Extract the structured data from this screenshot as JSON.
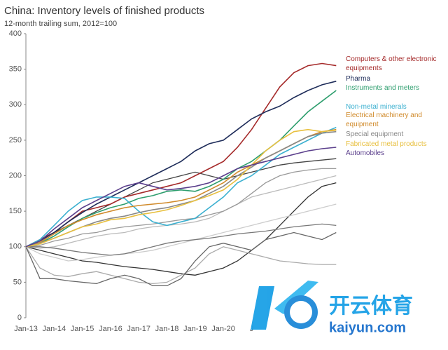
{
  "chart_data": {
    "type": "line",
    "title": "China: Inventory levels of finished products",
    "subtitle": "12-month trailing sum, 2012=100",
    "categories": [
      "Jan-13",
      null,
      "Jan-14",
      null,
      "Jan-15",
      null,
      "Jan-16",
      null,
      "Jan-17",
      null,
      "Jan-18",
      null,
      "Jan-19",
      null,
      "Jan-20",
      null,
      "J",
      null,
      null,
      null,
      null,
      null,
      null
    ],
    "ylim": [
      0,
      400
    ],
    "yticks": [
      0,
      50,
      100,
      150,
      200,
      250,
      300,
      350,
      400
    ],
    "series": [
      {
        "color": "#333333",
        "values": [
          100,
          95,
          90,
          85,
          80,
          78,
          75,
          72,
          70,
          68,
          65,
          62,
          60,
          65,
          70,
          80,
          95,
          110,
          130,
          150,
          170,
          185,
          190
        ]
      },
      {
        "color": "#aaaaaa",
        "values": [
          100,
          70,
          60,
          58,
          62,
          65,
          60,
          55,
          50,
          48,
          50,
          60,
          70,
          90,
          100,
          95,
          90,
          85,
          80,
          78,
          76,
          75,
          75
        ]
      },
      {
        "color": "#666666",
        "values": [
          100,
          55,
          55,
          52,
          50,
          48,
          55,
          60,
          55,
          45,
          45,
          55,
          80,
          100,
          105,
          100,
          95,
          110,
          115,
          120,
          115,
          110,
          120
        ]
      },
      {
        "color": "#bbbbbb",
        "values": [
          100,
          98,
          100,
          105,
          110,
          115,
          118,
          120,
          125,
          128,
          130,
          132,
          135,
          140,
          150,
          160,
          170,
          175,
          180,
          185,
          190,
          195,
          200
        ]
      },
      {
        "color": "#999999",
        "values": [
          100,
          102,
          108,
          112,
          118,
          120,
          125,
          128,
          130,
          132,
          135,
          138,
          140,
          145,
          150,
          160,
          175,
          190,
          200,
          205,
          208,
          210,
          210
        ]
      },
      {
        "color": "#cccccc",
        "values": [
          100,
          90,
          85,
          80,
          82,
          85,
          88,
          90,
          92,
          95,
          100,
          105,
          110,
          115,
          120,
          125,
          130,
          135,
          140,
          145,
          150,
          155,
          160
        ]
      },
      {
        "color": "#777777",
        "values": [
          100,
          100,
          98,
          95,
          92,
          90,
          88,
          90,
          95,
          100,
          105,
          108,
          110,
          112,
          115,
          118,
          120,
          122,
          125,
          128,
          130,
          132,
          130
        ]
      },
      {
        "color": "#444444",
        "values": [
          100,
          110,
          120,
          130,
          140,
          150,
          160,
          170,
          180,
          190,
          195,
          200,
          205,
          200,
          195,
          200,
          205,
          210,
          215,
          218,
          220,
          222,
          224
        ]
      },
      {
        "name": "Computers & other electronic equipments",
        "color": "#a52a2a",
        "values": [
          100,
          110,
          120,
          135,
          150,
          155,
          160,
          170,
          175,
          180,
          185,
          190,
          200,
          210,
          220,
          240,
          265,
          295,
          325,
          345,
          355,
          358,
          355
        ]
      },
      {
        "name": "Pharma",
        "color": "#1f2d5a",
        "values": [
          100,
          108,
          120,
          135,
          148,
          160,
          170,
          180,
          190,
          200,
          210,
          220,
          235,
          245,
          250,
          265,
          280,
          290,
          298,
          310,
          320,
          328,
          333
        ]
      },
      {
        "name": "Instruments and meters",
        "color": "#2e9e6e",
        "values": [
          100,
          105,
          115,
          128,
          140,
          148,
          155,
          160,
          168,
          172,
          178,
          180,
          178,
          185,
          195,
          210,
          220,
          235,
          250,
          270,
          290,
          305,
          320
        ]
      },
      {
        "name": "Non-metal minerals",
        "color": "#3bb0d0",
        "values": [
          100,
          110,
          130,
          150,
          165,
          170,
          170,
          168,
          150,
          135,
          130,
          135,
          140,
          155,
          170,
          190,
          200,
          215,
          230,
          240,
          250,
          260,
          268
        ]
      },
      {
        "name": "Electrical machinery and equipment",
        "color": "#d08a2a",
        "values": [
          100,
          106,
          118,
          130,
          138,
          145,
          150,
          155,
          158,
          160,
          162,
          165,
          170,
          180,
          190,
          205,
          215,
          225,
          235,
          245,
          255,
          262,
          265
        ]
      },
      {
        "name": "Special equipment",
        "color": "#888888",
        "values": [
          100,
          105,
          112,
          120,
          128,
          135,
          140,
          143,
          148,
          152,
          155,
          160,
          165,
          175,
          185,
          200,
          212,
          225,
          235,
          245,
          255,
          260,
          262
        ]
      },
      {
        "name": "Fabricated metal products",
        "color": "#e8c040",
        "values": [
          100,
          104,
          112,
          120,
          128,
          132,
          138,
          140,
          145,
          148,
          152,
          158,
          165,
          172,
          180,
          195,
          215,
          235,
          250,
          262,
          265,
          262,
          264
        ]
      },
      {
        "name": "Automobiles",
        "color": "#5b3f8c",
        "values": [
          100,
          108,
          125,
          140,
          155,
          165,
          175,
          185,
          190,
          185,
          180,
          182,
          185,
          190,
          200,
          210,
          215,
          220,
          225,
          230,
          235,
          238,
          240
        ]
      }
    ]
  },
  "watermark": {
    "title": "开云体育",
    "url": "kaiyun.com"
  }
}
